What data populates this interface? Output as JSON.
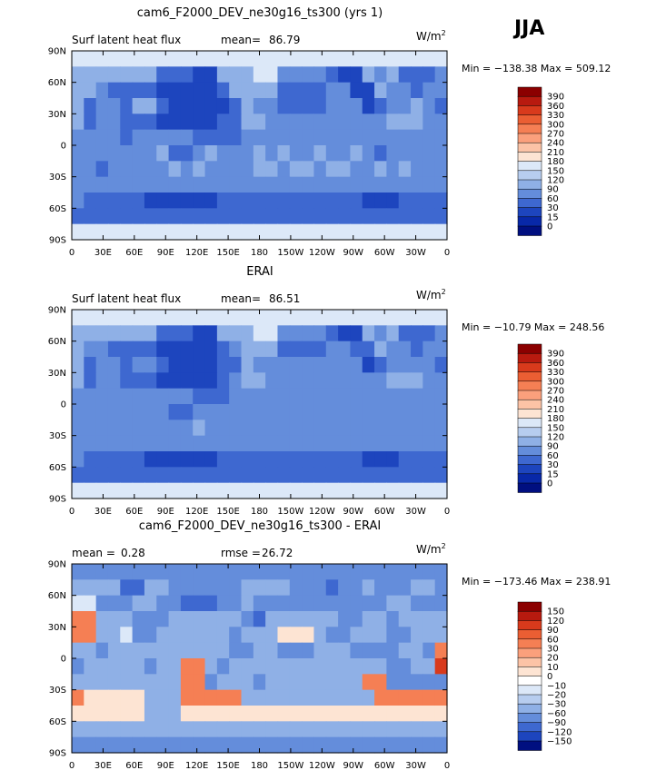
{
  "season": "JJA",
  "chart_data": [
    {
      "type": "heatmap",
      "title": "cam6_F2000_DEV_ne30g16_ts300 (yrs 1)",
      "left_label": "Surf latent heat flux",
      "stat1_label": "mean=",
      "stat1_value": "86.79",
      "stat2_label": "",
      "stat2_value": "",
      "units": "W/m",
      "units_sup": "2",
      "min_max": "Min = −138.38 Max = 509.12",
      "legend_levels": [
        "390",
        "360",
        "330",
        "300",
        "270",
        "240",
        "210",
        "180",
        "150",
        "120",
        "90",
        "60",
        "30",
        "15",
        "0"
      ],
      "legend_colors": [
        "#8b0000",
        "#b81a0f",
        "#d83a1c",
        "#ea5e33",
        "#f57f54",
        "#fba07c",
        "#fcc3a6",
        "#fde4d3",
        "#dce8f8",
        "#b7cdef",
        "#8fb0e6",
        "#648ddb",
        "#3e68d0",
        "#1d45be",
        "#0828a8",
        "#000f80"
      ],
      "grid_rows": [
        "5555555555555555555555555555555",
        "4444444222114445533332114342223",
        "4432222111112444422223311433233",
        "4233244211111243322223331233432",
        "4233222111112244333333333344433",
        "3333233333222233333333333333333",
        "3333333422343334343343343233333",
        "3323333343433334434434433434333",
        "3333333333333333333333333333333",
        "3222221111112222222222221112222",
        "2222222222222222222222222222222",
        "5555555555555555555555555555555"
      ]
    },
    {
      "type": "heatmap",
      "title": "ERAI",
      "left_label": "Surf latent heat flux",
      "stat1_label": "mean=",
      "stat1_value": "86.51",
      "stat2_label": "",
      "stat2_value": "",
      "units": "W/m",
      "units_sup": "2",
      "min_max": "Min = −10.79 Max = 248.56",
      "legend_levels": [
        "390",
        "360",
        "330",
        "300",
        "270",
        "240",
        "210",
        "180",
        "150",
        "120",
        "90",
        "60",
        "30",
        "15",
        "0"
      ],
      "legend_colors": [
        "#8b0000",
        "#b81a0f",
        "#d83a1c",
        "#ea5e33",
        "#f57f54",
        "#fba07c",
        "#fcc3a6",
        "#fde4d3",
        "#dce8f8",
        "#b7cdef",
        "#8fb0e6",
        "#648ddb",
        "#3e68d0",
        "#1d45be",
        "#0828a8",
        "#000f80"
      ],
      "grid_rows": [
        "5555555555555555555555555555555",
        "4444444222114445533332114342223",
        "4332222111112344422223322433233",
        "4233233211112243333333331233332",
        "4233222111112344333333333344433",
        "3333333333222333333333333333333",
        "3333333322333333333333333333333",
        "3333333333433333333333333333333",
        "3333333333333333333333333333333",
        "3222221111112222222222221112222",
        "2222222222222222222222222222222",
        "5555555555555555555555555555555"
      ]
    },
    {
      "type": "heatmap",
      "title": "cam6_F2000_DEV_ne30g16_ts300 - ERAI",
      "left_label": "",
      "stat1_label": "mean =",
      "stat1_value": "0.28",
      "stat2_label": "rmse =",
      "stat2_value": "26.72",
      "units": "W/m",
      "units_sup": "2",
      "min_max": "Min = −173.46 Max = 238.91",
      "legend_levels": [
        "150",
        "120",
        "90",
        "60",
        "30",
        "20",
        "10",
        "0",
        "−10",
        "−20",
        "−30",
        "−60",
        "−90",
        "−120",
        "−150"
      ],
      "legend_colors": [
        "#8b0000",
        "#b81a0f",
        "#d83a1c",
        "#ea5e33",
        "#f57f54",
        "#fba07c",
        "#fcc3a6",
        "#fde4d3",
        "#ffffff",
        "#dce8f8",
        "#b7cdef",
        "#8fb0e6",
        "#648ddb",
        "#3e68d0",
        "#1d45be",
        "#000f80"
      ],
      "grid_rows": [
        "3333333333333333333333333333333",
        "4444224433333344443332334333443",
        "5533344332223343333333333344333",
        "7744433344444432444444334434444",
        "7744533444444344466643344433444",
        "4434444444444334433344433334437",
        "3444443447743444444444444433448",
        "4444444447734443444444447733333",
        "7666664447777744444444444777777",
        "6666664446666666666666666666666",
        "4444444444444444444444444444444",
        "3333333333333333333333333333333"
      ]
    }
  ],
  "lat_ticks": [
    "90N",
    "60N",
    "30N",
    "0",
    "30S",
    "60S",
    "90S"
  ],
  "lon_ticks": [
    "0",
    "30E",
    "60E",
    "90E",
    "120E",
    "150E",
    "180",
    "150W",
    "120W",
    "90W",
    "60W",
    "30W",
    "0"
  ]
}
